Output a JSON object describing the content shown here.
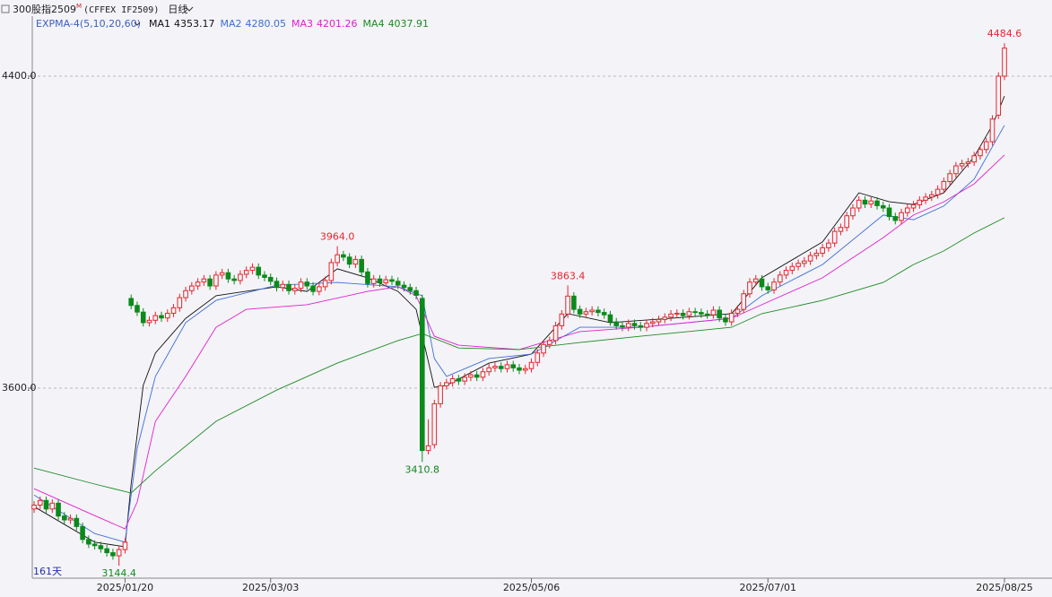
{
  "chart_data": {
    "type": "candlestick",
    "title": "300股指2509",
    "title_sup": "M",
    "subtitle": "(CFFEX IF2509)",
    "period": "日线",
    "indicator": "EXPMA-4(5,10,20,60)",
    "count_label": "161天",
    "up_color": "#e3262c",
    "down_color": "#0b8a1b",
    "ylim": [
      3112.6,
      4595.4
    ],
    "yticks": [
      {
        "value": 4400,
        "label": "4400.0"
      },
      {
        "value": 3600,
        "label": "3600.0"
      }
    ],
    "xticks": [
      {
        "value": 15,
        "label": "2025/01/20"
      },
      {
        "value": 39,
        "label": "2025/03/03"
      },
      {
        "value": 82,
        "label": "2025/05/06"
      },
      {
        "value": 121,
        "label": "2025/07/01"
      },
      {
        "value": 160,
        "label": "2025/08/25"
      }
    ],
    "grid": true,
    "candles": {
      "open": [
        3290,
        3300,
        3312,
        3290,
        3305,
        3272,
        3262,
        3266,
        3245,
        3212,
        3200,
        3196,
        3188,
        3178,
        3170,
        3186,
        3830,
        3812,
        3795,
        3768,
        3774,
        3786,
        3780,
        3792,
        3806,
        3832,
        3850,
        3862,
        3872,
        3880,
        3862,
        3890,
        3896,
        3880,
        3876,
        3892,
        3902,
        3910,
        3890,
        3884,
        3874,
        3858,
        3866,
        3850,
        3856,
        3872,
        3862,
        3848,
        3860,
        3876,
        3922,
        3942,
        3936,
        3918,
        3930,
        3898,
        3868,
        3880,
        3870,
        3878,
        3874,
        3864,
        3858,
        3850,
        3830,
        3440,
        3455,
        3560,
        3606,
        3614,
        3624,
        3618,
        3628,
        3634,
        3628,
        3642,
        3652,
        3656,
        3650,
        3660,
        3652,
        3646,
        3650,
        3666,
        3690,
        3712,
        3722,
        3760,
        3790,
        3836,
        3802,
        3790,
        3796,
        3800,
        3794,
        3788,
        3770,
        3760,
        3756,
        3766,
        3760,
        3756,
        3766,
        3770,
        3776,
        3782,
        3790,
        3792,
        3786,
        3796,
        3794,
        3790,
        3788,
        3800,
        3780,
        3770,
        3792,
        3802,
        3842,
        3872,
        3880,
        3860,
        3852,
        3872,
        3890,
        3902,
        3912,
        3920,
        3926,
        3940,
        3946,
        3960,
        3972,
        4002,
        4012,
        4042,
        4062,
        4082,
        4072,
        4080,
        4068,
        4062,
        4040,
        4030,
        4050,
        4062,
        4070,
        4082,
        4090,
        4096,
        4110,
        4130,
        4150,
        4170,
        4176,
        4180,
        4196,
        4212,
        4232,
        4300,
        4400
      ],
      "high": [
        3310,
        3322,
        3322,
        3315,
        3315,
        3282,
        3276,
        3276,
        3255,
        3222,
        3210,
        3206,
        3198,
        3188,
        3196,
        3215,
        3840,
        3822,
        3805,
        3784,
        3796,
        3796,
        3802,
        3816,
        3842,
        3860,
        3872,
        3882,
        3890,
        3890,
        3900,
        3906,
        3906,
        3890,
        3902,
        3912,
        3920,
        3920,
        3900,
        3894,
        3884,
        3876,
        3876,
        3866,
        3882,
        3882,
        3872,
        3870,
        3886,
        3932,
        3964,
        3952,
        3946,
        3940,
        3940,
        3908,
        3890,
        3890,
        3888,
        3888,
        3884,
        3874,
        3868,
        3860,
        3840,
        3520,
        3570,
        3616,
        3624,
        3634,
        3634,
        3638,
        3644,
        3644,
        3652,
        3662,
        3666,
        3666,
        3670,
        3670,
        3662,
        3660,
        3676,
        3700,
        3722,
        3732,
        3770,
        3800,
        3863.4,
        3846,
        3812,
        3806,
        3810,
        3810,
        3804,
        3798,
        3780,
        3770,
        3776,
        3776,
        3770,
        3776,
        3780,
        3786,
        3792,
        3800,
        3802,
        3802,
        3806,
        3806,
        3804,
        3800,
        3810,
        3810,
        3790,
        3802,
        3812,
        3852,
        3882,
        3890,
        3890,
        3870,
        3882,
        3900,
        3912,
        3922,
        3930,
        3936,
        3950,
        3956,
        3970,
        3982,
        4012,
        4022,
        4052,
        4072,
        4092,
        4092,
        4090,
        4090,
        4078,
        4072,
        4050,
        4060,
        4072,
        4080,
        4092,
        4100,
        4106,
        4120,
        4140,
        4160,
        4180,
        4186,
        4190,
        4206,
        4222,
        4242,
        4300,
        4410,
        4484.6
      ],
      "low": [
        3280,
        3290,
        3280,
        3280,
        3262,
        3252,
        3252,
        3235,
        3202,
        3190,
        3186,
        3178,
        3168,
        3160,
        3144.4,
        3176,
        3802,
        3785,
        3758,
        3758,
        3764,
        3770,
        3770,
        3782,
        3796,
        3822,
        3840,
        3852,
        3862,
        3852,
        3852,
        3880,
        3870,
        3866,
        3866,
        3882,
        3892,
        3880,
        3874,
        3864,
        3848,
        3848,
        3840,
        3840,
        3846,
        3852,
        3838,
        3838,
        3850,
        3866,
        3912,
        3926,
        3908,
        3908,
        3888,
        3858,
        3858,
        3860,
        3860,
        3864,
        3854,
        3848,
        3840,
        3828,
        3410.8,
        3430,
        3445,
        3550,
        3596,
        3604,
        3608,
        3608,
        3618,
        3618,
        3618,
        3632,
        3642,
        3640,
        3640,
        3642,
        3636,
        3636,
        3640,
        3656,
        3680,
        3702,
        3712,
        3750,
        3780,
        3792,
        3780,
        3780,
        3786,
        3784,
        3778,
        3760,
        3750,
        3746,
        3746,
        3750,
        3746,
        3746,
        3756,
        3760,
        3766,
        3772,
        3780,
        3776,
        3776,
        3784,
        3780,
        3778,
        3778,
        3770,
        3760,
        3760,
        3782,
        3792,
        3832,
        3862,
        3850,
        3842,
        3842,
        3862,
        3880,
        3892,
        3902,
        3910,
        3916,
        3930,
        3936,
        3950,
        3962,
        3992,
        4002,
        4032,
        4052,
        4062,
        4062,
        4058,
        4052,
        4030,
        4020,
        4020,
        4040,
        4052,
        4060,
        4072,
        4080,
        4086,
        4100,
        4120,
        4140,
        4160,
        4166,
        4170,
        4186,
        4202,
        4222,
        4290,
        4390
      ],
      "close": [
        3300,
        3312,
        3290,
        3305,
        3272,
        3262,
        3266,
        3245,
        3212,
        3200,
        3196,
        3188,
        3178,
        3170,
        3186,
        3205,
        3812,
        3795,
        3768,
        3774,
        3786,
        3780,
        3792,
        3806,
        3832,
        3850,
        3862,
        3872,
        3880,
        3862,
        3890,
        3896,
        3880,
        3876,
        3892,
        3902,
        3910,
        3890,
        3884,
        3874,
        3858,
        3866,
        3850,
        3856,
        3872,
        3862,
        3848,
        3860,
        3876,
        3922,
        3942,
        3936,
        3918,
        3930,
        3898,
        3868,
        3880,
        3870,
        3878,
        3874,
        3864,
        3858,
        3850,
        3838,
        3440,
        3452,
        3560,
        3606,
        3614,
        3624,
        3618,
        3628,
        3634,
        3628,
        3642,
        3652,
        3656,
        3650,
        3660,
        3652,
        3646,
        3650,
        3666,
        3690,
        3712,
        3722,
        3760,
        3790,
        3836,
        3802,
        3790,
        3796,
        3800,
        3794,
        3788,
        3770,
        3760,
        3756,
        3766,
        3760,
        3756,
        3766,
        3770,
        3776,
        3782,
        3790,
        3792,
        3786,
        3796,
        3794,
        3790,
        3788,
        3800,
        3780,
        3770,
        3792,
        3802,
        3842,
        3872,
        3880,
        3860,
        3852,
        3872,
        3890,
        3902,
        3912,
        3920,
        3926,
        3940,
        3946,
        3960,
        3972,
        4002,
        4012,
        4042,
        4062,
        4082,
        4072,
        4080,
        4068,
        4062,
        4040,
        4030,
        4050,
        4062,
        4070,
        4082,
        4090,
        4096,
        4110,
        4130,
        4150,
        4170,
        4176,
        4180,
        4196,
        4212,
        4232,
        4290,
        4400,
        4472
      ]
    },
    "lines": [
      {
        "name": "MA1",
        "color": "#111111",
        "current": 4353.17,
        "x": [
          0,
          10,
          15,
          16,
          18,
          20,
          25,
          30,
          40,
          45,
          50,
          55,
          60,
          63,
          66,
          68,
          75,
          82,
          88,
          95,
          105,
          115,
          120,
          130,
          136,
          141,
          145,
          150,
          155,
          158,
          160
        ],
        "values": [
          3296,
          3205,
          3193,
          3354,
          3607,
          3690,
          3779,
          3837,
          3860,
          3848,
          3906,
          3883,
          3848,
          3802,
          3602,
          3607,
          3664,
          3687,
          3791,
          3768,
          3779,
          3791,
          3883,
          3975,
          4101,
          4078,
          4071,
          4101,
          4193,
          4274,
          4349
        ]
      },
      {
        "name": "MA2",
        "color": "#3b6fd6",
        "current": 4280.05,
        "x": [
          0,
          10,
          15,
          17,
          20,
          25,
          30,
          40,
          50,
          60,
          64,
          66,
          68,
          75,
          82,
          90,
          100,
          115,
          120,
          130,
          140,
          145,
          150,
          155,
          160
        ],
        "values": [
          3326,
          3227,
          3205,
          3446,
          3630,
          3768,
          3825,
          3864,
          3871,
          3860,
          3837,
          3676,
          3630,
          3676,
          3687,
          3756,
          3756,
          3779,
          3837,
          3917,
          4044,
          4032,
          4067,
          4136,
          4274
        ]
      },
      {
        "name": "MA3",
        "color": "#e01fcf",
        "current": 4201.26,
        "x": [
          0,
          10,
          15,
          17,
          20,
          25,
          30,
          35,
          45,
          55,
          60,
          63,
          66,
          70,
          80,
          90,
          100,
          115,
          120,
          130,
          140,
          145,
          150,
          155,
          160
        ],
        "values": [
          3342,
          3273,
          3239,
          3308,
          3515,
          3630,
          3756,
          3802,
          3814,
          3848,
          3860,
          3837,
          3733,
          3710,
          3699,
          3745,
          3756,
          3779,
          3814,
          3883,
          3986,
          4044,
          4078,
          4124,
          4198
        ]
      },
      {
        "name": "MA4",
        "color": "#1c8c22",
        "current": 4037.91,
        "x": [
          0,
          10,
          16,
          20,
          30,
          40,
          50,
          60,
          64,
          70,
          80,
          90,
          100,
          115,
          120,
          130,
          140,
          145,
          150,
          155,
          160
        ],
        "values": [
          3395,
          3354,
          3331,
          3388,
          3515,
          3595,
          3664,
          3722,
          3740,
          3703,
          3699,
          3717,
          3733,
          3756,
          3791,
          3825,
          3871,
          3917,
          3952,
          3998,
          4037
        ]
      }
    ],
    "annotations": [
      {
        "label": "3144.4",
        "index": 14,
        "value": 3144.4,
        "anchor": "low",
        "color": "#0b8a1b"
      },
      {
        "label": "3964.0",
        "index": 50,
        "value": 3964,
        "anchor": "high",
        "color": "#e3262c"
      },
      {
        "label": "3410.8",
        "index": 64,
        "value": 3410.8,
        "anchor": "low",
        "color": "#0b8a1b"
      },
      {
        "label": "3863.4",
        "index": 88,
        "value": 3863.4,
        "anchor": "high",
        "color": "#e3262c"
      },
      {
        "label": "4484.6",
        "index": 160,
        "value": 4484.6,
        "anchor": "high",
        "color": "#e3262c"
      }
    ]
  }
}
